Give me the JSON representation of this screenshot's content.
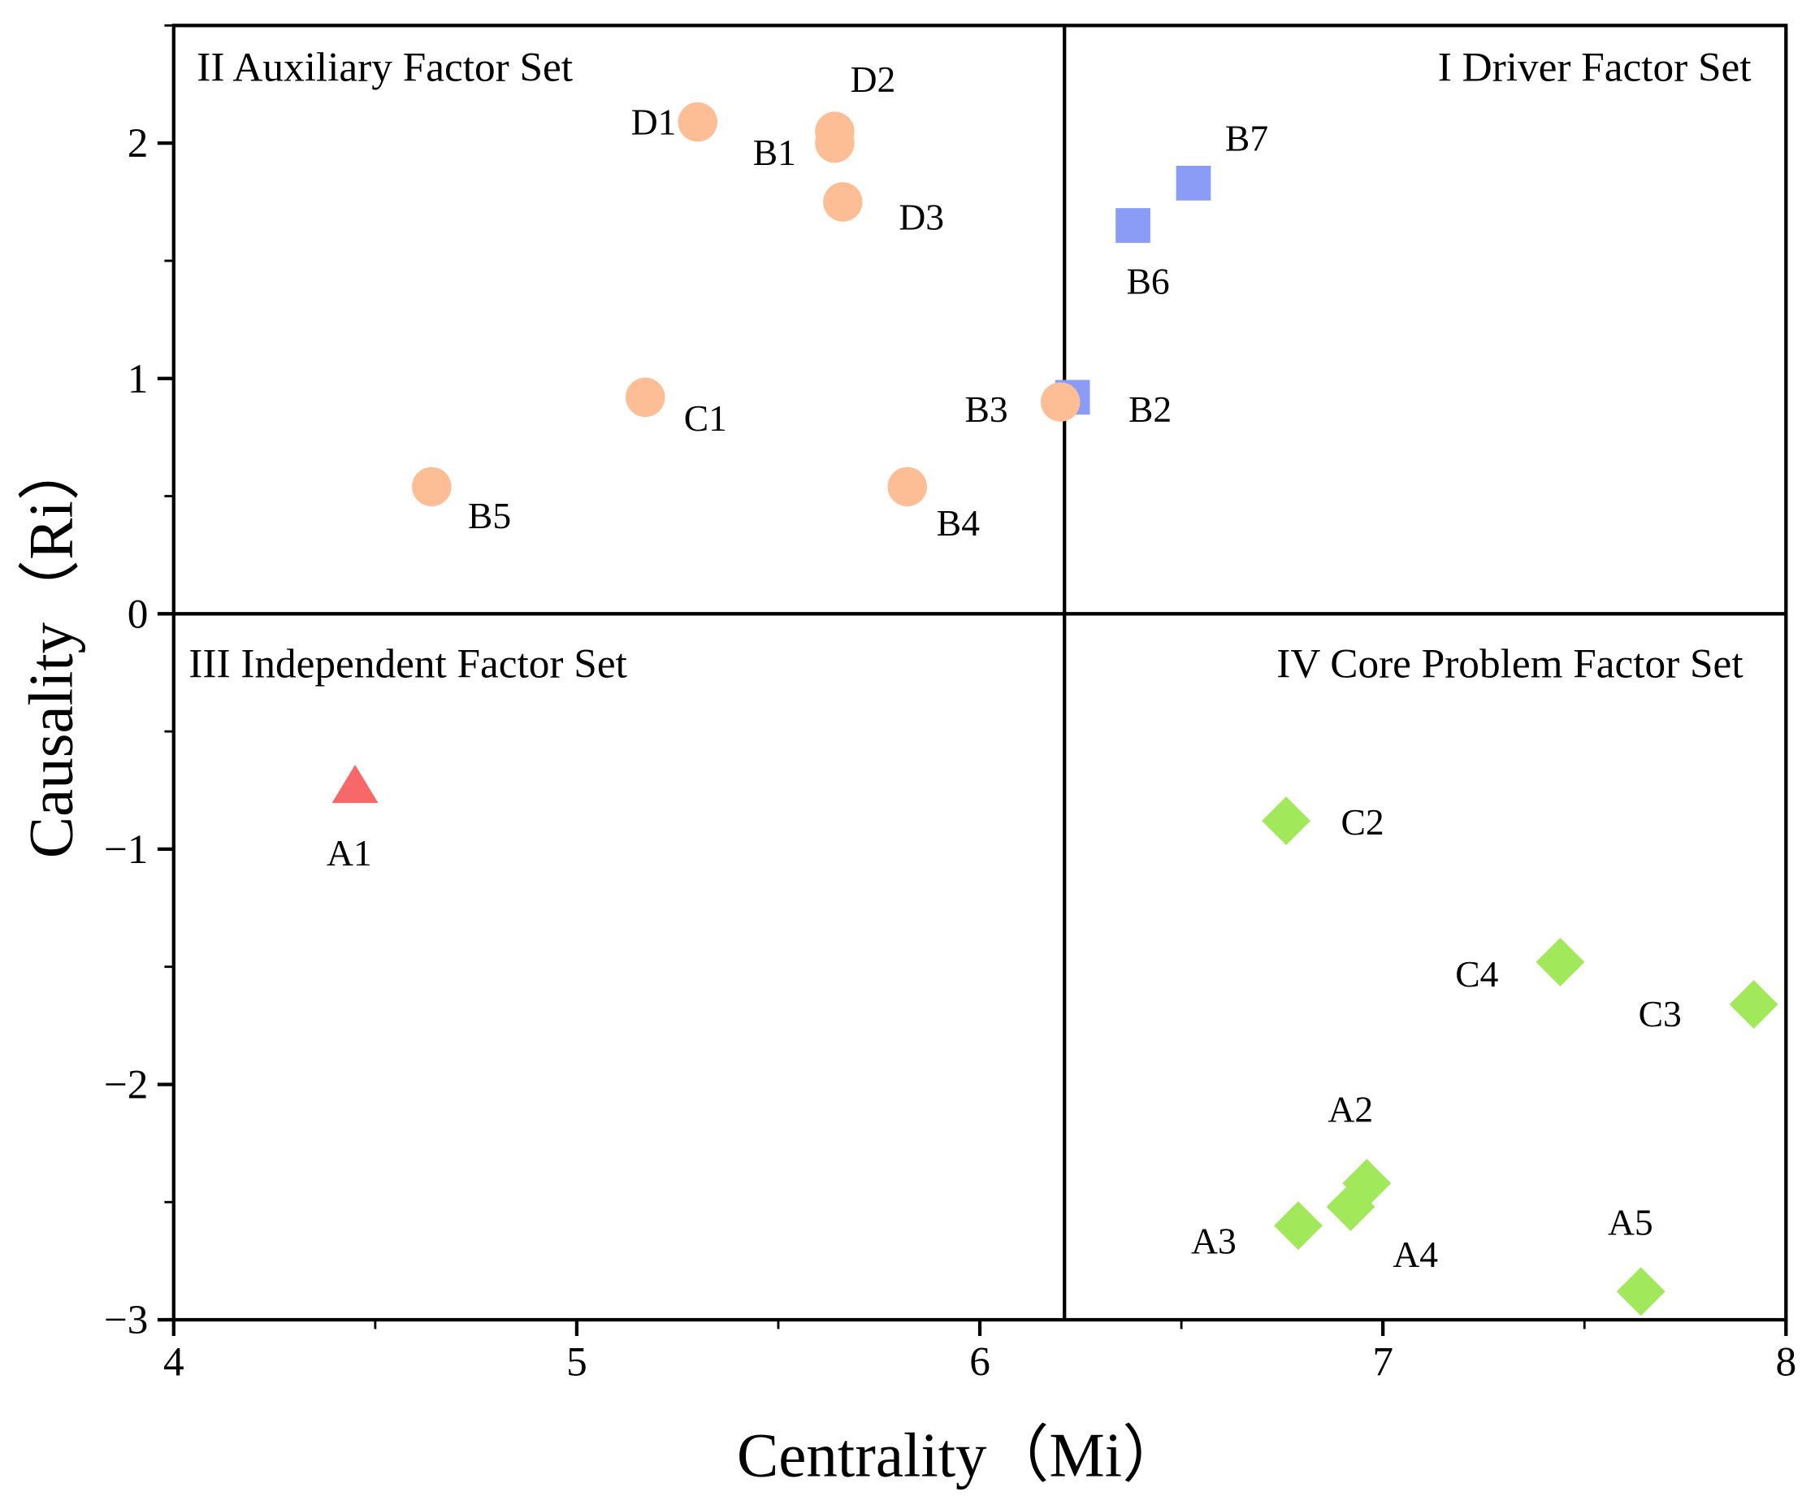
{
  "chart_data": {
    "type": "scatter",
    "xlabel": "Centrality（Mi）",
    "ylabel": "Causality（Ri）",
    "xlim": [
      4,
      8
    ],
    "ylim": [
      -3,
      2.5
    ],
    "xticks": [
      "4",
      "5",
      "6",
      "7",
      "8"
    ],
    "yticks": [
      "−3",
      "−2",
      "−1",
      "0",
      "1",
      "2"
    ],
    "divider_x": 6.21,
    "divider_y": 0,
    "quadrants": {
      "I": "I Driver Factor Set",
      "II": "II Auxiliary Factor Set",
      "III": "III  Independent Factor Set",
      "IV": "IV  Core Problem Factor Set"
    },
    "series": [
      {
        "name": "Auxiliary",
        "marker": "circle",
        "color": "#FDBE96",
        "points": [
          {
            "label": "D1",
            "x": 5.3,
            "y": 2.09
          },
          {
            "label": "D2",
            "x": 5.64,
            "y": 2.05
          },
          {
            "label": "B1",
            "x": 5.64,
            "y": 2.0
          },
          {
            "label": "D3",
            "x": 5.66,
            "y": 1.75
          },
          {
            "label": "C1",
            "x": 5.17,
            "y": 0.92
          },
          {
            "label": "B5",
            "x": 4.64,
            "y": 0.54
          },
          {
            "label": "B4",
            "x": 5.82,
            "y": 0.54
          },
          {
            "label": "B3",
            "x": 6.2,
            "y": 0.9
          }
        ]
      },
      {
        "name": "Driver",
        "marker": "square",
        "color": "#8B9CF7",
        "points": [
          {
            "label": "B2",
            "x": 6.23,
            "y": 0.92
          },
          {
            "label": "B6",
            "x": 6.38,
            "y": 1.65
          },
          {
            "label": "B7",
            "x": 6.53,
            "y": 1.83
          }
        ]
      },
      {
        "name": "Independent",
        "marker": "triangle",
        "color": "#F96868",
        "points": [
          {
            "label": "A1",
            "x": 4.45,
            "y": -0.73
          }
        ]
      },
      {
        "name": "Core Problem",
        "marker": "diamond",
        "color": "#A1E85A",
        "points": [
          {
            "label": "C2",
            "x": 6.76,
            "y": -0.88
          },
          {
            "label": "C4",
            "x": 7.44,
            "y": -1.48
          },
          {
            "label": "C3",
            "x": 7.92,
            "y": -1.66
          },
          {
            "label": "A2",
            "x": 6.96,
            "y": -2.42
          },
          {
            "label": "A4",
            "x": 6.92,
            "y": -2.52
          },
          {
            "label": "A3",
            "x": 6.79,
            "y": -2.6
          },
          {
            "label": "A5",
            "x": 7.64,
            "y": -2.88
          }
        ]
      }
    ]
  }
}
